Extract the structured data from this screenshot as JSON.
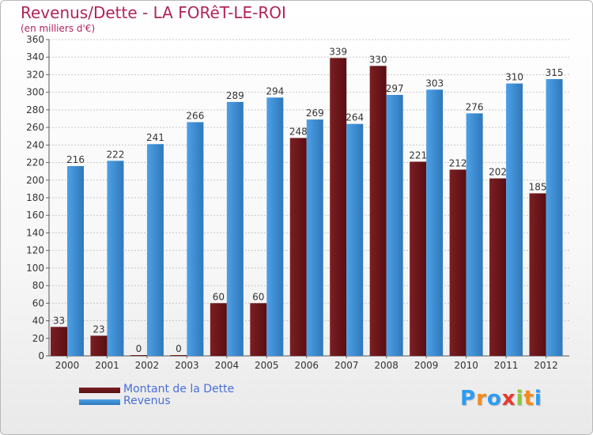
{
  "header": {
    "title": "Revenus/Dette - LA FORêT-LE-ROI",
    "subtitle": "(en milliers d'€)"
  },
  "colors": {
    "debt": "#7a1f22",
    "debt_dark": "#5a0e12",
    "revenue": "#4da0e6",
    "revenue_dark": "#2f78bb",
    "title": "#b0245a",
    "legend_text": "#4a6fd6"
  },
  "legend": {
    "debt_label": "Montant de la Dette",
    "revenue_label": "Revenus"
  },
  "logo": {
    "letters": [
      "P",
      "r",
      "o",
      "x",
      "i",
      "t",
      "i"
    ],
    "colors": [
      "#2a9df4",
      "#f28c1a",
      "#2a9df4",
      "#e63a2e",
      "#8dc63f",
      "#f28c1a",
      "#2a9df4"
    ]
  },
  "chart_data": {
    "type": "bar",
    "title": "Revenus/Dette - LA FORêT-LE-ROI",
    "ylabel": "(en milliers d'€)",
    "xlabel": "",
    "categories": [
      "2000",
      "2001",
      "2002",
      "2003",
      "2004",
      "2005",
      "2006",
      "2007",
      "2008",
      "2009",
      "2010",
      "2011",
      "2012"
    ],
    "series": [
      {
        "name": "Montant de la Dette",
        "values": [
          33,
          23,
          0,
          0,
          60,
          60,
          248,
          339,
          330,
          221,
          212,
          202,
          185
        ]
      },
      {
        "name": "Revenus",
        "values": [
          216,
          222,
          241,
          266,
          289,
          294,
          269,
          264,
          297,
          303,
          276,
          310,
          315
        ]
      }
    ],
    "ylim": [
      0,
      360
    ],
    "yticks": [
      0,
      20,
      40,
      60,
      80,
      100,
      120,
      140,
      160,
      180,
      200,
      220,
      240,
      260,
      280,
      300,
      320,
      340,
      360
    ],
    "grid": true,
    "legend_position": "bottom-left"
  }
}
